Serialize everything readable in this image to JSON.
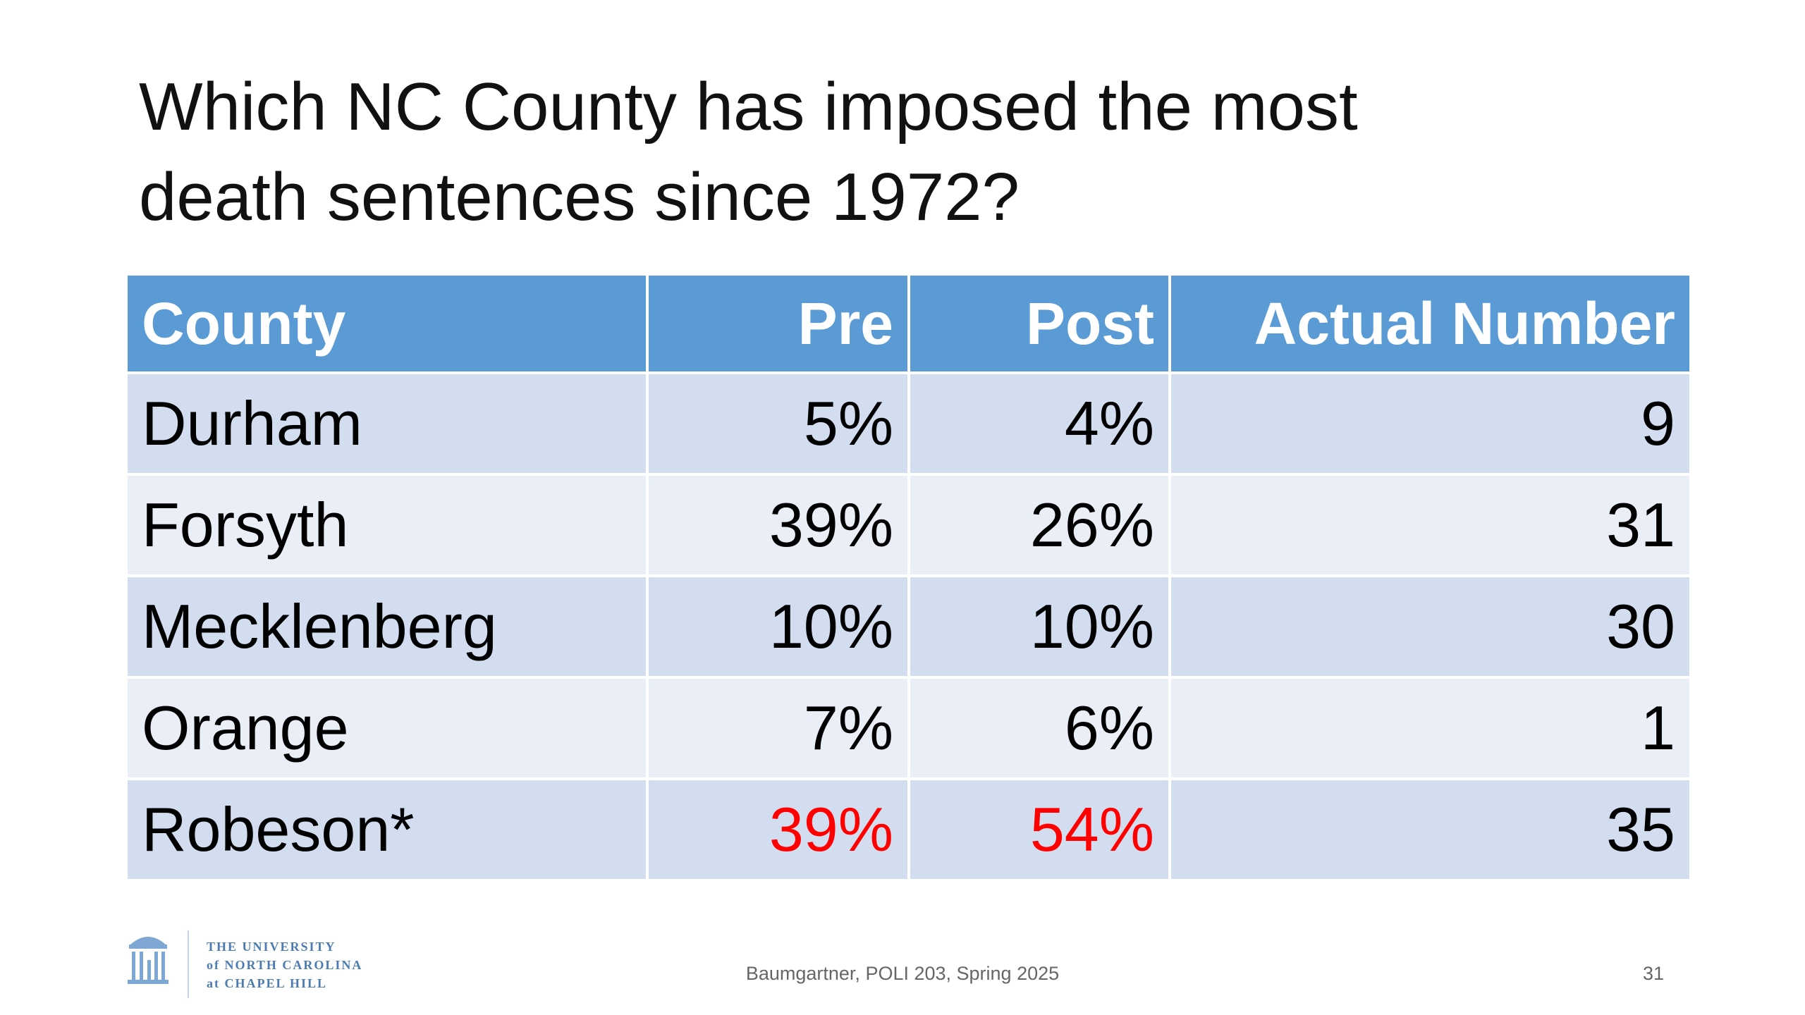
{
  "title": [
    "Which NC County has imposed the most",
    "death sentences since 1972?"
  ],
  "table": {
    "header": [
      "County",
      "Pre",
      "Post",
      "Actual Number"
    ],
    "rows": [
      [
        "Durham",
        "5%",
        "4%",
        "9"
      ],
      [
        "Forsyth",
        "39%",
        "26%",
        "31"
      ],
      [
        "Mecklenberg",
        "10%",
        "10%",
        "30"
      ],
      [
        "Orange",
        "7%",
        "6%",
        "1"
      ],
      [
        "Robeson*",
        "39%",
        "54%",
        "35"
      ]
    ]
  },
  "footer": {
    "logo": [
      "THE UNIVERSITY",
      "of NORTH CAROLINA",
      "at CHAPEL HILL"
    ],
    "citation": "Baumgartner, POLI 203, Spring 2025",
    "page": "31"
  }
}
